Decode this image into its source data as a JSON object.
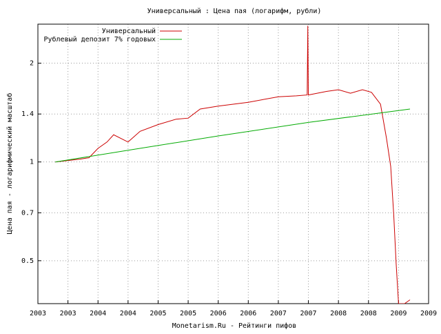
{
  "chart_data": {
    "type": "line",
    "title": "Универсальный : Цена пая (логарифм, рубли)",
    "x_label": "Monetarism.Ru - Рейтинги пифов",
    "y_label": "Цена пая - логарифмический масштаб",
    "log_y": true,
    "grid": true,
    "legend": "top-right",
    "xlim": [
      2003,
      2009.5
    ],
    "xticks": [
      2003,
      {
        "value": 2003.5,
        "label": "2003"
      },
      2004,
      {
        "value": 2004.5,
        "label": "2004"
      },
      2005,
      {
        "value": 2005.5,
        "label": "2005"
      },
      2006,
      {
        "value": 2006.5,
        "label": "2006"
      },
      2007,
      {
        "value": 2007.5,
        "label": "2007"
      },
      2008,
      {
        "value": 2008.5,
        "label": "2008"
      },
      2009,
      {
        "value": 2009.5,
        "label": "2009"
      }
    ],
    "ylim": [
      0.37,
      2.63
    ],
    "yticks": [
      0.5,
      0.7,
      1,
      1.4,
      2
    ],
    "series": [
      {
        "name": "Универсальный",
        "color": "#cc0000",
        "x": [
          2003.29,
          2003.5,
          2003.7,
          2003.85,
          2004.0,
          2004.15,
          2004.26,
          2004.5,
          2004.7,
          2005.0,
          2005.3,
          2005.5,
          2005.7,
          2006.0,
          2006.5,
          2007.0,
          2007.3,
          2007.48,
          2007.49,
          2007.5,
          2007.8,
          2008.0,
          2008.2,
          2008.4,
          2008.55,
          2008.7,
          2008.8,
          2008.87,
          2008.92,
          2008.96,
          2009.0,
          2009.1,
          2009.19
        ],
        "values": [
          1.0,
          1.01,
          1.02,
          1.03,
          1.1,
          1.15,
          1.21,
          1.15,
          1.24,
          1.3,
          1.35,
          1.36,
          1.45,
          1.48,
          1.52,
          1.58,
          1.59,
          1.6,
          2.6,
          1.6,
          1.64,
          1.66,
          1.62,
          1.66,
          1.63,
          1.5,
          1.18,
          0.97,
          0.69,
          0.49,
          0.37,
          0.37,
          0.38
        ]
      },
      {
        "name": "Рублевый депозит 7% годовых",
        "color": "#00aa00",
        "x": [
          2003.29,
          2004.5,
          2006.0,
          2007.5,
          2009.19
        ],
        "values": [
          1.0,
          1.085,
          1.2,
          1.32,
          1.45
        ]
      }
    ]
  }
}
